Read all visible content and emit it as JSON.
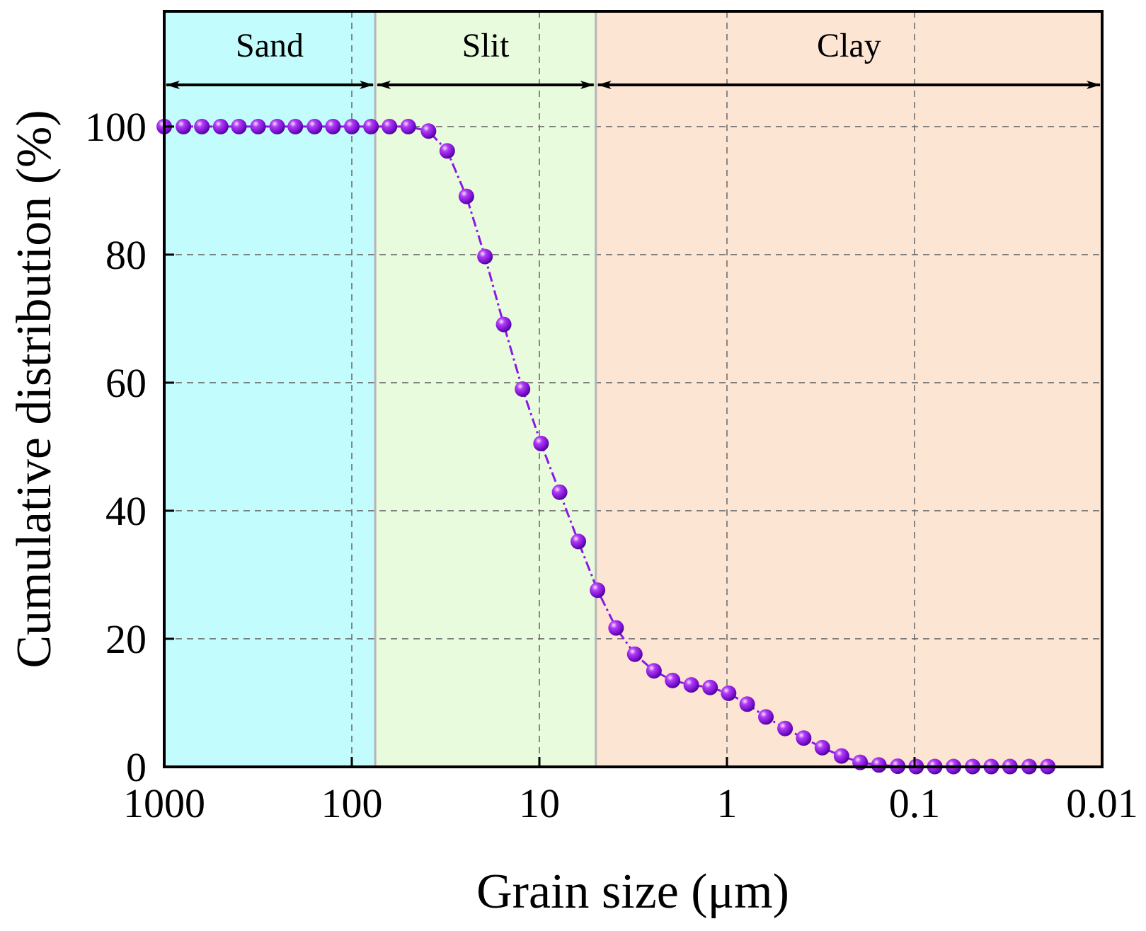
{
  "chart_data": {
    "type": "scatter",
    "title": "",
    "xlabel": "Grain size (μm)",
    "ylabel": "Cumulative distribution (%)",
    "x_scale": "log",
    "x_reversed": true,
    "xlim": [
      1000,
      0.01
    ],
    "ylim": [
      0,
      118
    ],
    "grid": true,
    "x_ticks": [
      1000,
      100,
      10,
      1,
      0.1,
      0.01
    ],
    "x_tick_labels": [
      "1000",
      "100",
      "10",
      "1",
      "0.1",
      "0.01"
    ],
    "y_ticks": [
      0,
      20,
      40,
      60,
      80,
      100
    ],
    "y_tick_labels": [
      "0",
      "20",
      "40",
      "60",
      "80",
      "100"
    ],
    "regions": [
      {
        "name": "Sand",
        "from": 1000,
        "to": 75,
        "color": "#c3fcfc"
      },
      {
        "name": "Slit",
        "from": 75,
        "to": 5,
        "color": "#e8fbdc"
      },
      {
        "name": "Clay",
        "from": 5,
        "to": 0.01,
        "color": "#fde5d4"
      }
    ],
    "series": [
      {
        "name": "Cumulative distribution",
        "color": "#8a18e8",
        "line_style": "dash-dot",
        "x": [
          1000,
          790,
          630,
          500,
          400,
          316,
          250,
          200,
          158,
          126,
          100,
          79,
          63,
          50,
          39,
          31,
          24.5,
          19.5,
          15.5,
          12.3,
          9.8,
          7.8,
          6.2,
          4.9,
          3.9,
          3.1,
          2.45,
          1.95,
          1.55,
          1.23,
          0.98,
          0.78,
          0.62,
          0.49,
          0.39,
          0.31,
          0.245,
          0.195,
          0.155,
          0.123,
          0.098,
          0.078,
          0.062,
          0.049,
          0.039,
          0.031,
          0.0245,
          0.0195
        ],
        "y": [
          100,
          100,
          100,
          100,
          100,
          100,
          100,
          100,
          100,
          100,
          100,
          100,
          100,
          100,
          99.3,
          96.2,
          89.1,
          79.7,
          69.1,
          59,
          50.5,
          42.9,
          35.2,
          27.6,
          21.7,
          17.6,
          15.0,
          13.5,
          12.8,
          12.4,
          11.5,
          9.8,
          7.8,
          6.0,
          4.5,
          3.0,
          1.7,
          0.7,
          0.3,
          0.1,
          0.05,
          0.05,
          0.05,
          0.05,
          0.05,
          0.05,
          0.05,
          0.05
        ]
      }
    ]
  }
}
